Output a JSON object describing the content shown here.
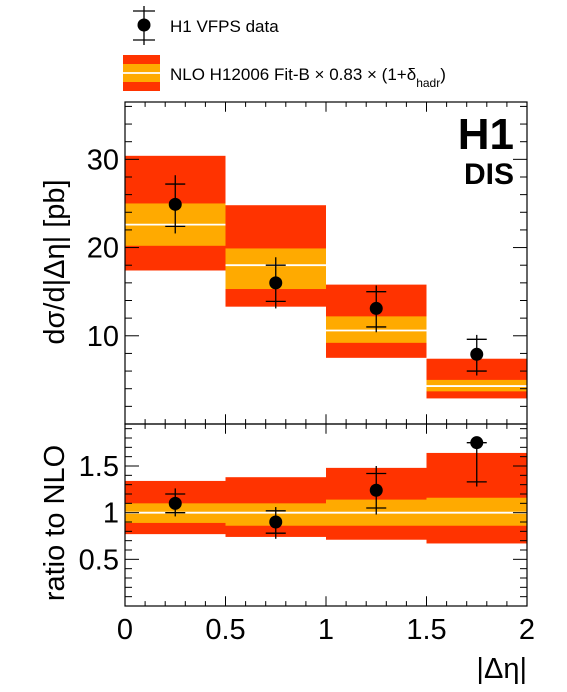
{
  "colors": {
    "outer_band": "#ff3300",
    "inner_band": "#ffaa00",
    "central_line": "#ffffff",
    "data": "#000000"
  },
  "legend": {
    "data_label": "H1 VFPS data",
    "nlo_label_main": "NLO H12006 Fit-B × 0.83 × (1+δ",
    "nlo_label_sub": "hadr",
    "nlo_label_close": ")"
  },
  "logo": {
    "experiment": "H1",
    "process": "DIS"
  },
  "chart_data": [
    {
      "type": "bar",
      "panel": "cross-section",
      "ylabel": "dσ/d|Δη| [pb]",
      "xlabel": "",
      "xlim": [
        0,
        2
      ],
      "ylim": [
        0,
        36.5
      ],
      "y_ticks": [
        10,
        20,
        30
      ],
      "y_tick_labels": [
        "10",
        "20",
        "30"
      ],
      "bins": [
        [
          0,
          0.5
        ],
        [
          0.5,
          1.0
        ],
        [
          1.0,
          1.5
        ],
        [
          1.5,
          2.0
        ]
      ],
      "nlo": {
        "central": [
          22.6,
          18.0,
          10.6,
          4.3
        ],
        "inner_band": [
          [
            20.2,
            25.0
          ],
          [
            15.3,
            19.9
          ],
          [
            9.2,
            12.2
          ],
          [
            3.7,
            5.0
          ]
        ],
        "outer_band": [
          [
            17.4,
            30.4
          ],
          [
            13.3,
            24.8
          ],
          [
            7.5,
            15.8
          ],
          [
            2.9,
            7.4
          ]
        ]
      },
      "data": {
        "x": [
          0.25,
          0.75,
          1.25,
          1.75
        ],
        "y": [
          24.9,
          16.0,
          13.1,
          7.9
        ],
        "stat_err": [
          [
            22.4,
            27.2
          ],
          [
            13.9,
            18.0
          ],
          [
            11.0,
            15.0
          ],
          [
            6.0,
            9.6
          ]
        ],
        "tot_err": [
          [
            21.6,
            28.2
          ],
          [
            13.1,
            18.9
          ],
          [
            10.4,
            15.7
          ],
          [
            5.5,
            10.1
          ]
        ]
      }
    },
    {
      "type": "bar",
      "panel": "ratio",
      "ylabel": "ratio to NLO",
      "xlabel": "|Δη|",
      "xlim": [
        0,
        2
      ],
      "ylim": [
        0,
        1.95
      ],
      "y_ticks": [
        0.5,
        1,
        1.5
      ],
      "y_tick_labels": [
        "0.5",
        "1",
        "1.5"
      ],
      "x_ticks": [
        0,
        0.5,
        1,
        1.5,
        2
      ],
      "x_tick_labels": [
        "0",
        "0.5",
        "1",
        "1.5",
        "2"
      ],
      "bins": [
        [
          0,
          0.5
        ],
        [
          0.5,
          1.0
        ],
        [
          1.0,
          1.5
        ],
        [
          1.5,
          2.0
        ]
      ],
      "nlo": {
        "central": [
          1.0,
          1.0,
          1.0,
          1.0
        ],
        "inner_band": [
          [
            0.89,
            1.1
          ],
          [
            0.86,
            1.1
          ],
          [
            0.86,
            1.14
          ],
          [
            0.86,
            1.16
          ]
        ],
        "outer_band": [
          [
            0.77,
            1.34
          ],
          [
            0.74,
            1.38
          ],
          [
            0.71,
            1.48
          ],
          [
            0.67,
            1.64
          ]
        ]
      },
      "data": {
        "x": [
          0.25,
          0.75,
          1.25,
          1.75
        ],
        "y": [
          1.1,
          0.9,
          1.24,
          1.75
        ],
        "stat_err": [
          [
            1.0,
            1.2
          ],
          [
            0.78,
            1.02
          ],
          [
            1.05,
            1.42
          ],
          [
            1.33,
            1.75
          ]
        ],
        "tot_err": [
          [
            0.96,
            1.26
          ],
          [
            0.72,
            1.06
          ],
          [
            0.98,
            1.5
          ],
          [
            1.28,
            1.75
          ]
        ]
      }
    }
  ]
}
